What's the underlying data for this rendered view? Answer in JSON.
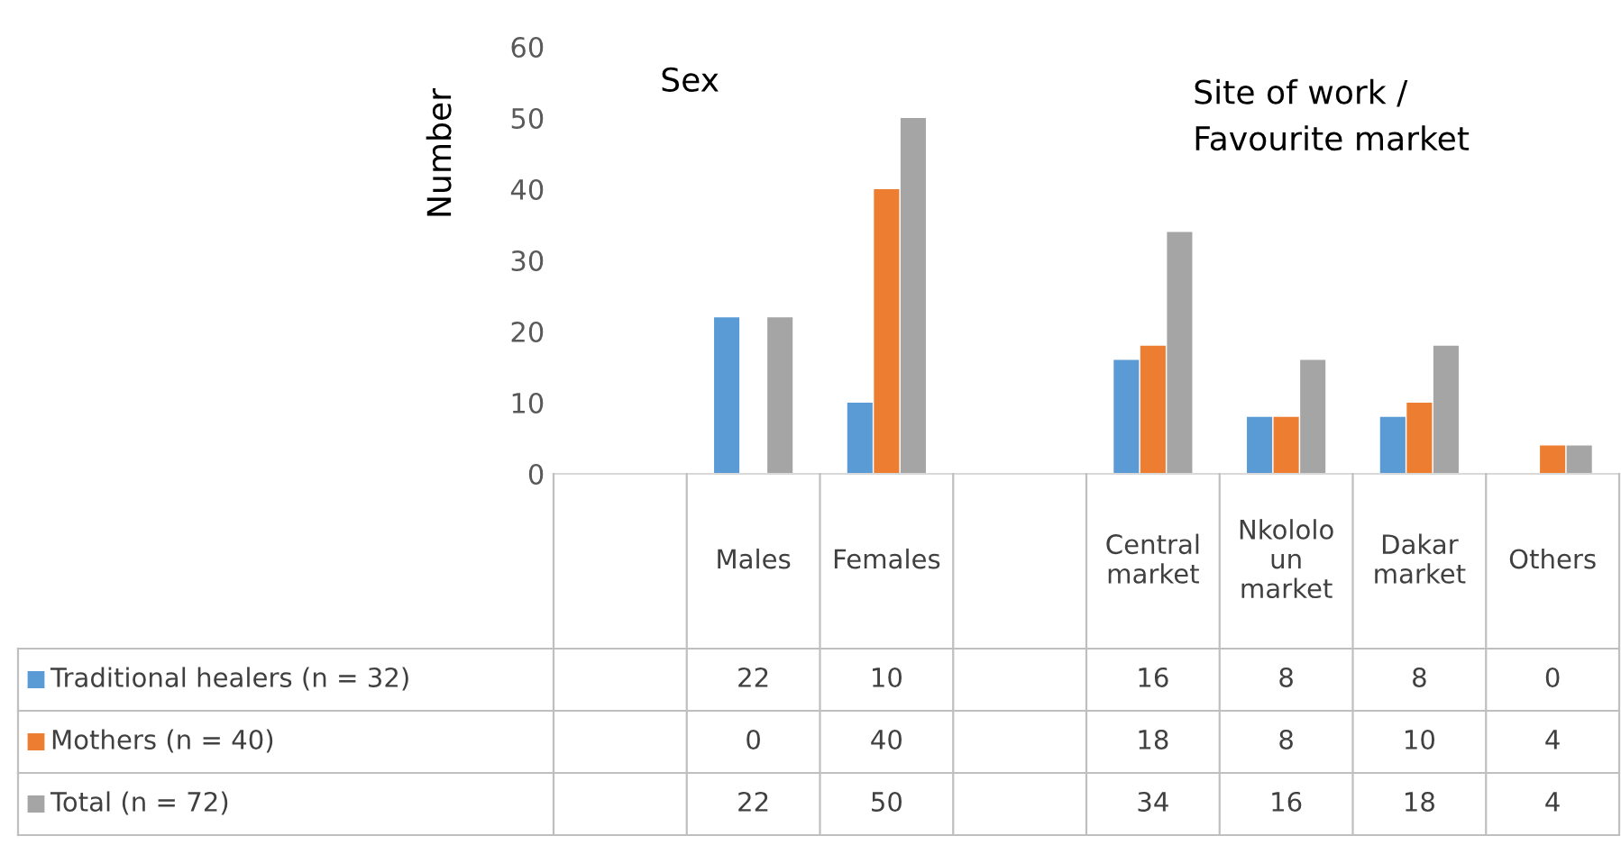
{
  "chart_data": {
    "type": "bar",
    "ylabel": "Number",
    "categories": [
      null,
      "Males",
      "Females",
      null,
      "Central\nmarket",
      "Nkololo\nun\nmarket",
      "Dakar\nmarket",
      "Others"
    ],
    "series": [
      {
        "name": "Traditional healers (n = 32)",
        "color": "#5b9bd5",
        "values": [
          null,
          22,
          10,
          null,
          16,
          8,
          8,
          0
        ]
      },
      {
        "name": "Mothers (n = 40)",
        "color": "#ed7d31",
        "values": [
          null,
          0,
          40,
          null,
          18,
          8,
          10,
          4
        ]
      },
      {
        "name": "Total (n = 72)",
        "color": "#a5a5a5",
        "values": [
          null,
          22,
          50,
          null,
          34,
          16,
          18,
          4
        ]
      }
    ],
    "ylim": [
      0,
      60
    ],
    "yticks": [
      0,
      10,
      20,
      30,
      40,
      50,
      60
    ],
    "data_labels": true,
    "grid": false,
    "legend": "bottom left",
    "annotations": [
      "Sex",
      "Site of work /\nFavourite market"
    ]
  }
}
